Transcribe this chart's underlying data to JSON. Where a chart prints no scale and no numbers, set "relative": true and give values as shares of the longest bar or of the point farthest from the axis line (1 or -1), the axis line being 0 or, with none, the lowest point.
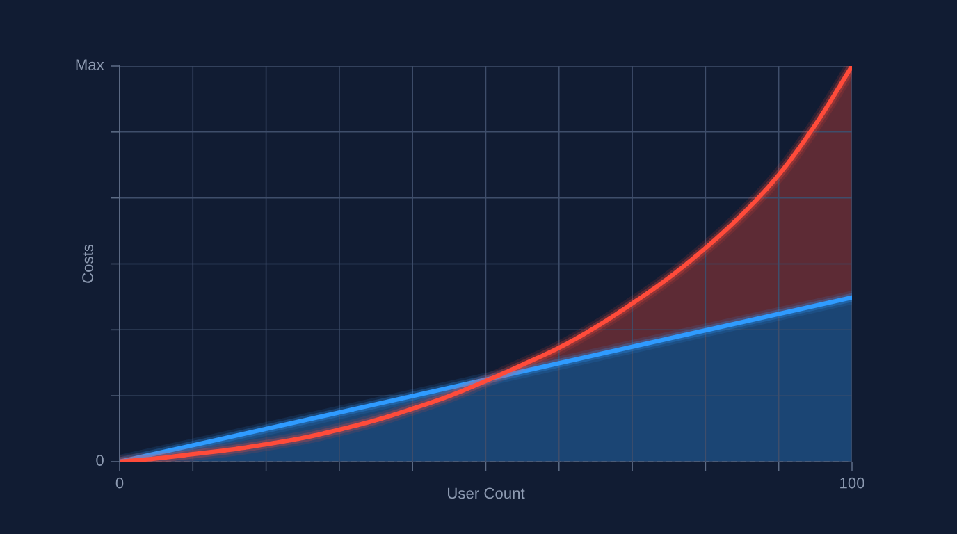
{
  "chart_data": {
    "type": "area",
    "xlabel": "User Count",
    "ylabel": "Costs",
    "relative": true,
    "x": [
      0,
      5,
      10,
      15,
      20,
      25,
      30,
      35,
      40,
      45,
      50,
      55,
      60,
      65,
      70,
      75,
      80,
      85,
      90,
      95,
      100
    ],
    "series": [
      {
        "color": "#ff4b3a",
        "values": [
          0,
          0.008,
          0.019,
          0.03,
          0.044,
          0.06,
          0.081,
          0.105,
          0.134,
          0.166,
          0.204,
          0.245,
          0.288,
          0.34,
          0.4,
          0.465,
          0.54,
          0.625,
          0.725,
          0.852,
          1.0
        ]
      },
      {
        "color": "#2f9bff",
        "x": [
          0,
          100
        ],
        "values": [
          0,
          0.415
        ]
      }
    ],
    "xlim": [
      0,
      100
    ],
    "xticks": [
      0,
      {
        "value": 10,
        "label": null
      },
      {
        "value": 20,
        "label": null
      },
      {
        "value": 30,
        "label": null
      },
      {
        "value": 40,
        "label": null
      },
      {
        "value": 50,
        "label": null
      },
      {
        "value": 60,
        "label": null
      },
      {
        "value": 70,
        "label": null
      },
      {
        "value": 80,
        "label": null
      },
      {
        "value": 90,
        "label": null
      },
      100
    ],
    "annotations": [
      "Max",
      {
        "text": "0",
        "x": 0,
        "y": 0
      }
    ],
    "grid": true
  }
}
